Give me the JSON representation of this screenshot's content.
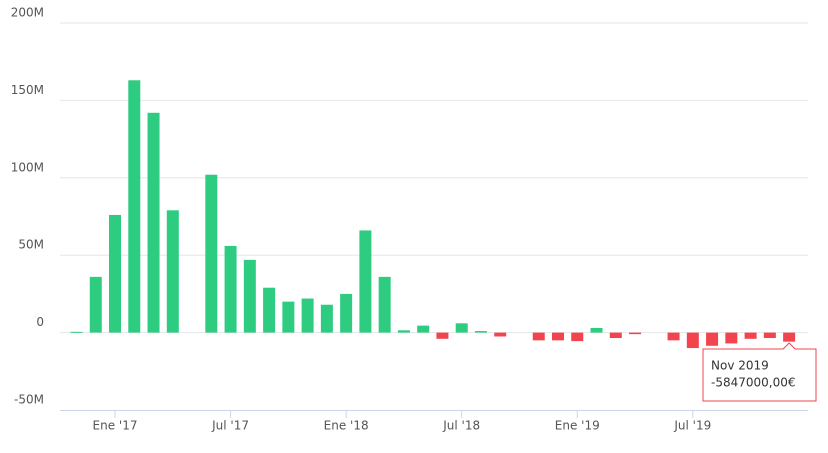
{
  "chart_data": {
    "type": "bar",
    "categories": [
      null,
      null,
      "Ene '17",
      null,
      null,
      null,
      null,
      null,
      "Jul '17",
      null,
      null,
      null,
      null,
      null,
      "Ene '18",
      null,
      null,
      null,
      null,
      null,
      "Jul '18",
      null,
      null,
      null,
      null,
      null,
      "Ene '19",
      null,
      null,
      null,
      null,
      null,
      "Jul '19",
      null,
      null,
      null,
      null,
      null
    ],
    "values": [
      0.5,
      36,
      76,
      163,
      142,
      79,
      null,
      102,
      56,
      47,
      29,
      20,
      22,
      18,
      25,
      66,
      36,
      1.5,
      4.5,
      -4,
      6,
      1,
      -2.5,
      null,
      -5,
      -5,
      -5.5,
      3,
      -3.5,
      -1,
      null,
      -5,
      -10,
      -8.5,
      -7,
      -4,
      -3.5,
      -5.847
    ],
    "color": "#2ecc80",
    "negative_color": "#f2444f",
    "ylim": [
      -50,
      200
    ],
    "yticks": [
      {
        "value": -50,
        "label": "-50M"
      },
      {
        "value": 0,
        "label": "0"
      },
      {
        "value": 50,
        "label": "50M"
      },
      {
        "value": 100,
        "label": "100M"
      },
      {
        "value": 150,
        "label": "150M"
      },
      {
        "value": 200,
        "label": "200M"
      }
    ],
    "grid": true,
    "tooltip": {
      "index": 37,
      "label": "Nov 2019",
      "value_label": "-5847000,00€"
    }
  }
}
